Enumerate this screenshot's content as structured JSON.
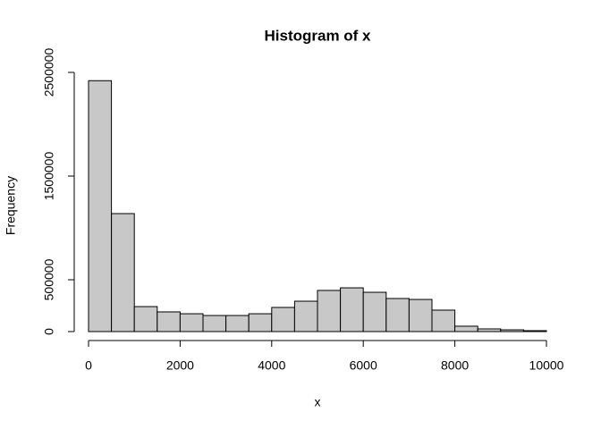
{
  "chart_data": {
    "type": "histogram",
    "title": "Histogram of x",
    "x_label": "x",
    "y_label": "Frequency",
    "bins": [
      0,
      500,
      1000,
      1500,
      2000,
      2500,
      3000,
      3500,
      4000,
      4500,
      5000,
      5500,
      6000,
      6500,
      7000,
      7500,
      8000,
      8500,
      9000,
      9500,
      10000
    ],
    "counts": [
      2420000,
      1138000,
      241000,
      190000,
      172000,
      155000,
      155000,
      172000,
      233000,
      293000,
      397000,
      422000,
      379000,
      319000,
      310000,
      207000,
      52000,
      26000,
      17000,
      9000
    ],
    "color": "#c8c8c8",
    "xlim": [
      0,
      10000
    ],
    "xticks": [
      0,
      2000,
      4000,
      6000,
      8000,
      10000
    ],
    "ylim": [
      0,
      2500000
    ],
    "yticks": [
      0,
      500000,
      1500000,
      2500000
    ]
  }
}
